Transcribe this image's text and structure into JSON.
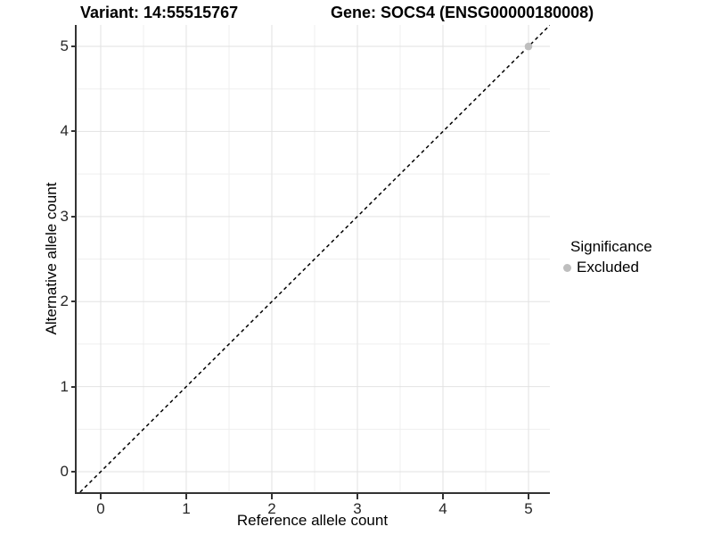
{
  "header": {
    "variant_title": "Variant: 14:55515767",
    "gene_title": "Gene: SOCS4 (ENSG00000180008)"
  },
  "chart_data": {
    "type": "scatter",
    "title_left": "Variant: 14:55515767",
    "title_right": "Gene: SOCS4 (ENSG00000180008)",
    "xlabel": "Reference allele count",
    "ylabel": "Alternative allele count",
    "xlim": [
      -0.281,
      5.25
    ],
    "ylim": [
      -0.241,
      5.252
    ],
    "xticks": [
      0,
      1,
      2,
      3,
      4,
      5
    ],
    "yticks": [
      0,
      1,
      2,
      3,
      4,
      5
    ],
    "minor_step": 0.5,
    "grid": {
      "major_color": "#e2e2e2",
      "minor_color": "#efefef"
    },
    "identity_line": {
      "equation": "y = x",
      "style": "dashed",
      "color": "#000000"
    },
    "points": [
      {
        "x": 5,
        "y": 5,
        "significance": "Excluded",
        "color": "#bebebe"
      }
    ],
    "legend": {
      "title": "Significance",
      "position": "right",
      "items": [
        {
          "label": "Excluded",
          "color": "#bebebe",
          "marker": "circle"
        }
      ]
    }
  },
  "colors": {
    "axis_line": "#333333",
    "tick_text": "#262626",
    "background": "#ffffff"
  }
}
